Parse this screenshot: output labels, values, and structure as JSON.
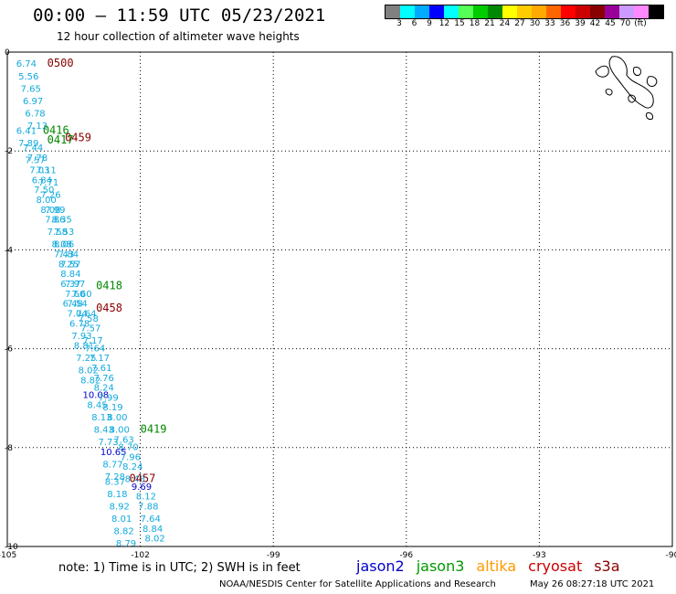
{
  "header": {
    "title": "00:00 – 11:59 UTC 05/23/2021",
    "subtitle": "12 hour collection of altimeter wave heights"
  },
  "legend": {
    "colors": [
      "#808080",
      "#00ffff",
      "#00aaff",
      "#0000ff",
      "#00ffff",
      "#55ff55",
      "#00cc00",
      "#008800",
      "#ffff00",
      "#ffcc00",
      "#ffaa00",
      "#ff6600",
      "#ff0000",
      "#cc0000",
      "#880000",
      "#990099",
      "#cc99ff",
      "#ff88ff",
      "#000000"
    ],
    "labels": [
      "3",
      "6",
      "9",
      "12",
      "15",
      "18",
      "21",
      "24",
      "27",
      "30",
      "33",
      "36",
      "39",
      "42",
      "45",
      "70",
      "(ft)"
    ]
  },
  "axes": {
    "lon_labels": [
      "-105",
      "-102",
      "-99",
      "-96",
      "-93",
      "-90"
    ],
    "lat_labels": [
      "0",
      "-2",
      "-4",
      "-6",
      "-8",
      "-10"
    ]
  },
  "track_labels": [
    {
      "text": "0500",
      "color": "#880000",
      "lon": -104.1,
      "lat": -0.3
    },
    {
      "text": "0416",
      "color": "#008800",
      "lon": -104.2,
      "lat": -1.65
    },
    {
      "text": "0459",
      "color": "#880000",
      "lon": -103.7,
      "lat": -1.8
    },
    {
      "text": "0417",
      "color": "#008800",
      "lon": -104.1,
      "lat": -1.85
    },
    {
      "text": "0418",
      "color": "#008800",
      "lon": -103.0,
      "lat": -4.8
    },
    {
      "text": "0458",
      "color": "#880000",
      "lon": -103.0,
      "lat": -5.25
    },
    {
      "text": "0419",
      "color": "#008800",
      "lon": -102.0,
      "lat": -7.7
    },
    {
      "text": "0457",
      "color": "#880000",
      "lon": -102.25,
      "lat": -8.7
    }
  ],
  "swh_points": [
    {
      "v": "6.74",
      "lon": -104.8,
      "lat": -0.3
    },
    {
      "v": "5.56",
      "lon": -104.75,
      "lat": -0.55
    },
    {
      "v": "7.65",
      "lon": -104.7,
      "lat": -0.8
    },
    {
      "v": "6.97",
      "lon": -104.65,
      "lat": -1.05
    },
    {
      "v": "6.78",
      "lon": -104.6,
      "lat": -1.3
    },
    {
      "v": "7.13",
      "lon": -104.55,
      "lat": -1.55
    },
    {
      "v": "6.41",
      "lon": -104.8,
      "lat": -1.65
    },
    {
      "v": "7.89",
      "lon": -104.75,
      "lat": -1.9
    },
    {
      "v": "7.44",
      "lon": -104.65,
      "lat": -2.0
    },
    {
      "v": "7.78",
      "lon": -104.55,
      "lat": -2.2
    },
    {
      "v": "7.57",
      "lon": -104.6,
      "lat": -2.25
    },
    {
      "v": "7.03",
      "lon": -104.5,
      "lat": -2.45
    },
    {
      "v": "7.11",
      "lon": -104.35,
      "lat": -2.45
    },
    {
      "v": "6.84",
      "lon": -104.45,
      "lat": -2.65
    },
    {
      "v": "7.71",
      "lon": -104.3,
      "lat": -2.7
    },
    {
      "v": "7.50",
      "lon": -104.4,
      "lat": -2.85
    },
    {
      "v": "7.26",
      "lon": -104.25,
      "lat": -2.95
    },
    {
      "v": "8.00",
      "lon": -104.35,
      "lat": -3.05
    },
    {
      "v": "8.08",
      "lon": -104.25,
      "lat": -3.25
    },
    {
      "v": "7.99",
      "lon": -104.15,
      "lat": -3.25
    },
    {
      "v": "7.86",
      "lon": -104.15,
      "lat": -3.45
    },
    {
      "v": "8.35",
      "lon": -104.0,
      "lat": -3.45
    },
    {
      "v": "7.58",
      "lon": -104.1,
      "lat": -3.7
    },
    {
      "v": "7.53",
      "lon": -103.95,
      "lat": -3.7
    },
    {
      "v": "8.08",
      "lon": -104.0,
      "lat": -3.95
    },
    {
      "v": "8.06",
      "lon": -103.95,
      "lat": -3.95
    },
    {
      "v": "7.43",
      "lon": -103.95,
      "lat": -4.15
    },
    {
      "v": "7.84",
      "lon": -103.85,
      "lat": -4.15
    },
    {
      "v": "8.25",
      "lon": -103.85,
      "lat": -4.35
    },
    {
      "v": "7.57",
      "lon": -103.8,
      "lat": -4.35
    },
    {
      "v": "8.84",
      "lon": -103.8,
      "lat": -4.55
    },
    {
      "v": "6.37",
      "lon": -103.8,
      "lat": -4.75
    },
    {
      "v": "7.97",
      "lon": -103.7,
      "lat": -4.75
    },
    {
      "v": "7.60",
      "lon": -103.7,
      "lat": -4.95
    },
    {
      "v": "7.60",
      "lon": -103.55,
      "lat": -4.95
    },
    {
      "v": "6.48",
      "lon": -103.75,
      "lat": -5.15
    },
    {
      "v": "7.54",
      "lon": -103.65,
      "lat": -5.15
    },
    {
      "v": "7.04",
      "lon": -103.65,
      "lat": -5.35
    },
    {
      "v": "7.64",
      "lon": -103.45,
      "lat": -5.35
    },
    {
      "v": "7.58",
      "lon": -103.4,
      "lat": -5.45
    },
    {
      "v": "6.78",
      "lon": -103.6,
      "lat": -5.55
    },
    {
      "v": "7.57",
      "lon": -103.35,
      "lat": -5.65
    },
    {
      "v": "7.93",
      "lon": -103.55,
      "lat": -5.8
    },
    {
      "v": "7.17",
      "lon": -103.3,
      "lat": -5.9
    },
    {
      "v": "8.81",
      "lon": -103.5,
      "lat": -6.0
    },
    {
      "v": "7.64",
      "lon": -103.25,
      "lat": -6.05
    },
    {
      "v": "7.25",
      "lon": -103.45,
      "lat": -6.25
    },
    {
      "v": "7.17",
      "lon": -103.15,
      "lat": -6.25
    },
    {
      "v": "8.02",
      "lon": -103.4,
      "lat": -6.5
    },
    {
      "v": "7.61",
      "lon": -103.1,
      "lat": -6.45
    },
    {
      "v": "8.82",
      "lon": -103.35,
      "lat": -6.7
    },
    {
      "v": "7.76",
      "lon": -103.05,
      "lat": -6.65
    },
    {
      "v": "8.24",
      "lon": -103.05,
      "lat": -6.85
    },
    {
      "v": "10.08",
      "lon": -103.3,
      "lat": -7.0
    },
    {
      "v": "7.99",
      "lon": -102.95,
      "lat": -7.05
    },
    {
      "v": "8.45",
      "lon": -103.2,
      "lat": -7.2
    },
    {
      "v": "8.19",
      "lon": -102.85,
      "lat": -7.25
    },
    {
      "v": "8.13",
      "lon": -103.1,
      "lat": -7.45
    },
    {
      "v": "8.00",
      "lon": -102.75,
      "lat": -7.45
    },
    {
      "v": "8.43",
      "lon": -103.05,
      "lat": -7.7
    },
    {
      "v": "8.00",
      "lon": -102.7,
      "lat": -7.7
    },
    {
      "v": "7.63",
      "lon": -102.6,
      "lat": -7.9
    },
    {
      "v": "7.73",
      "lon": -102.95,
      "lat": -7.95
    },
    {
      "v": "8.70",
      "lon": -102.5,
      "lat": -8.05
    },
    {
      "v": "10.65",
      "lon": -102.9,
      "lat": -8.15
    },
    {
      "v": "7.96",
      "lon": -102.45,
      "lat": -8.25
    },
    {
      "v": "8.77",
      "lon": -102.85,
      "lat": -8.4
    },
    {
      "v": "8.24",
      "lon": -102.4,
      "lat": -8.45
    },
    {
      "v": "7.28",
      "lon": -102.8,
      "lat": -8.65
    },
    {
      "v": "8.46",
      "lon": -102.35,
      "lat": -8.7
    },
    {
      "v": "8.37",
      "lon": -102.8,
      "lat": -8.75
    },
    {
      "v": "9.69",
      "lon": -102.2,
      "lat": -8.85
    },
    {
      "v": "8.18",
      "lon": -102.75,
      "lat": -9.0
    },
    {
      "v": "8.12",
      "lon": -102.1,
      "lat": -9.05
    },
    {
      "v": "8.92",
      "lon": -102.7,
      "lat": -9.25
    },
    {
      "v": "7.88",
      "lon": -102.05,
      "lat": -9.25
    },
    {
      "v": "8.01",
      "lon": -102.65,
      "lat": -9.5
    },
    {
      "v": "7.64",
      "lon": -102.0,
      "lat": -9.5
    },
    {
      "v": "8.82",
      "lon": -102.6,
      "lat": -9.75
    },
    {
      "v": "8.84",
      "lon": -101.95,
      "lat": -9.7
    },
    {
      "v": "8.79",
      "lon": -102.55,
      "lat": -10.0
    },
    {
      "v": "8.02",
      "lon": -101.9,
      "lat": -9.9
    }
  ],
  "footer": {
    "note": "note: 1) Time is in UTC; 2) SWH is in feet",
    "sats": [
      {
        "name": "jason2",
        "color": "#0000cc"
      },
      {
        "name": "jason3",
        "color": "#009900"
      },
      {
        "name": "altika",
        "color": "#ff9900"
      },
      {
        "name": "cryosat",
        "color": "#cc0000"
      },
      {
        "name": "s3a",
        "color": "#880000"
      }
    ],
    "credit": "NOAA/NESDIS Center for Satellite Applications and Research",
    "timestamp": "May 26 08:27:18 UTC 2021"
  }
}
